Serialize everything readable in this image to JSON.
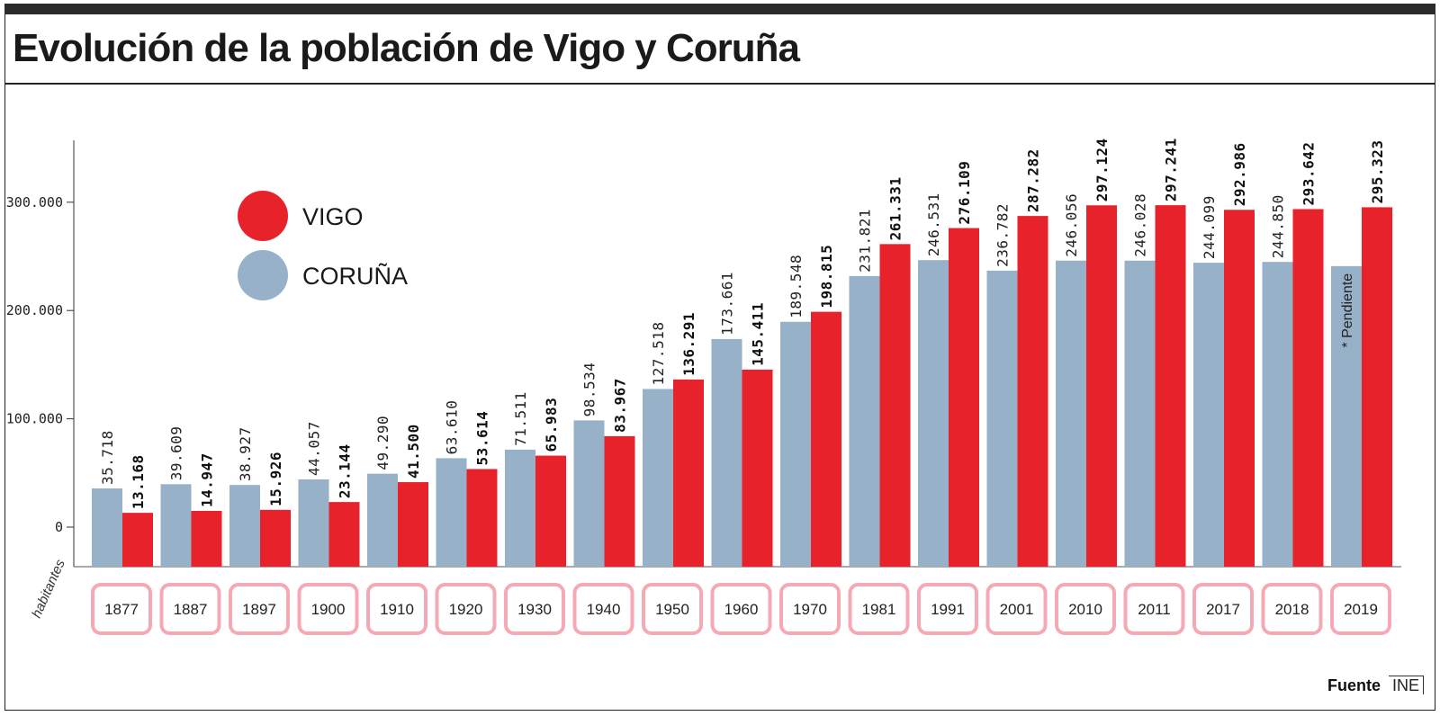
{
  "title": "Evolución de la población de Vigo y Coruña",
  "source": {
    "label": "Fuente",
    "value": "INE"
  },
  "colors": {
    "vigo": "#e8222a",
    "coruna": "#97b2c8",
    "year_box": "#f4a9b4"
  },
  "chart_data": {
    "type": "bar",
    "categories": [
      "1877",
      "1887",
      "1897",
      "1900",
      "1910",
      "1920",
      "1930",
      "1940",
      "1950",
      "1960",
      "1970",
      "1981",
      "1991",
      "2001",
      "2010",
      "2011",
      "2017",
      "2018",
      "2019"
    ],
    "series": [
      {
        "name": "CORUÑA",
        "color": "#97b2c8",
        "values": [
          35718,
          39609,
          38927,
          44057,
          49290,
          63610,
          71511,
          98534,
          127518,
          173661,
          189548,
          231821,
          246531,
          236782,
          246056,
          246028,
          244099,
          244850,
          null
        ],
        "labels": [
          "35.718",
          "39.609",
          "38.927",
          "44.057",
          "49.290",
          "63.610",
          "71.511",
          "98.534",
          "127.518",
          "173.661",
          "189.548",
          "231.821",
          "246.531",
          "236.782",
          "246.056",
          "246.028",
          "244.099",
          "244.850",
          "* Pendiente"
        ]
      },
      {
        "name": "VIGO",
        "color": "#e8222a",
        "values": [
          13168,
          14947,
          15926,
          23144,
          41500,
          53614,
          65983,
          83967,
          136291,
          145411,
          198815,
          261331,
          276109,
          287282,
          297124,
          297241,
          292986,
          293642,
          295323
        ],
        "labels": [
          "13.168",
          "14.947",
          "15.926",
          "23.144",
          "41.500",
          "53.614",
          "65.983",
          "83.967",
          "136.291",
          "145.411",
          "198.815",
          "261.331",
          "276.109",
          "287.282",
          "297.124",
          "297.241",
          "292.986",
          "293.642",
          "295.323"
        ]
      }
    ],
    "y_ticks": [
      {
        "value": 0,
        "label": "0"
      },
      {
        "value": 100000,
        "label": "100.000"
      },
      {
        "value": 200000,
        "label": "200.000"
      },
      {
        "value": 300000,
        "label": "300.000"
      }
    ],
    "ylabel": "habitantes",
    "ylim": [
      0,
      350000
    ],
    "legend": {
      "placement": "top-left",
      "entries": [
        "VIGO",
        "CORUÑA"
      ]
    }
  }
}
